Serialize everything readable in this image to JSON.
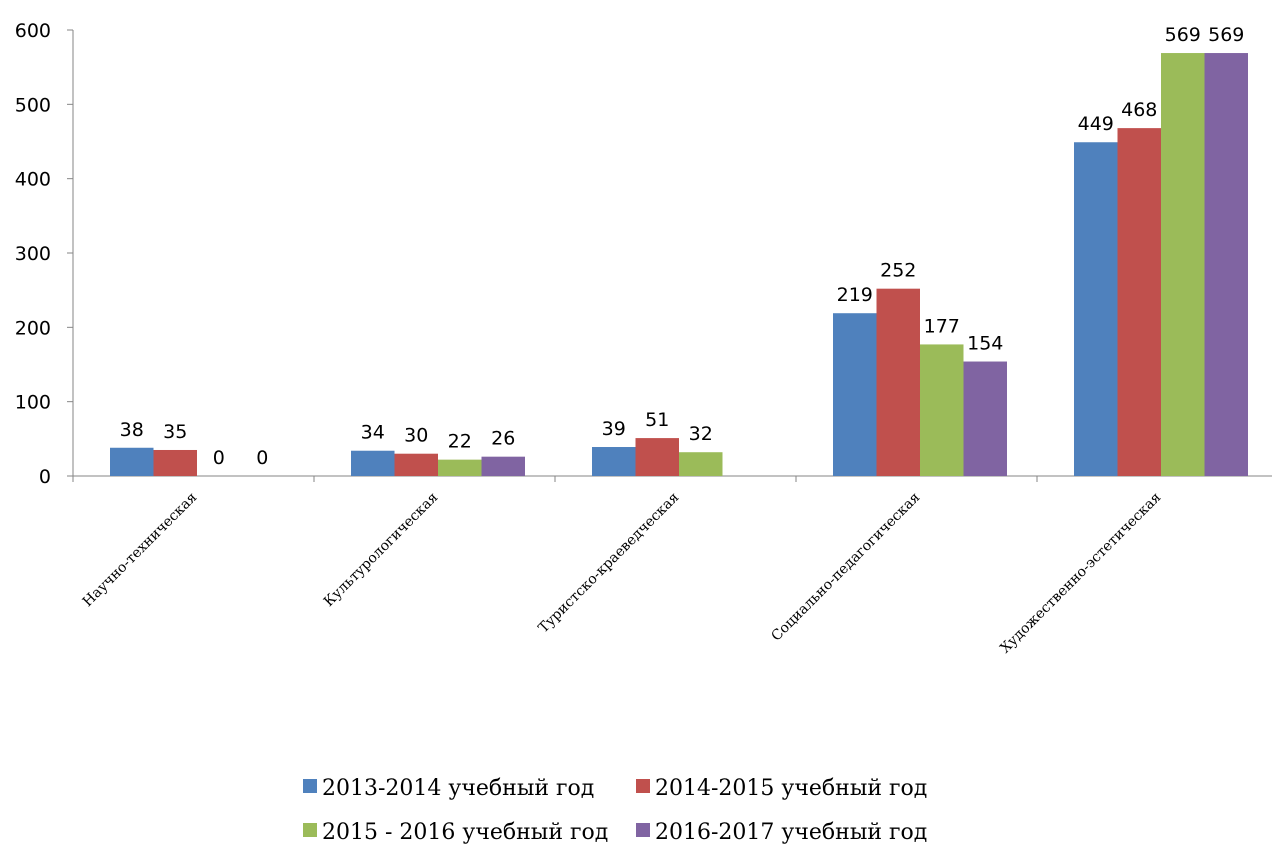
{
  "chart_data": {
    "type": "bar",
    "title": "",
    "xlabel": "",
    "ylabel": "",
    "ylim": [
      0,
      600
    ],
    "yticks": [
      0,
      100,
      200,
      300,
      400,
      500,
      600
    ],
    "grid": false,
    "legend_position": "bottom",
    "categories": [
      "Научно-техническая",
      "Культурологическая",
      "Туристско-краеведческая",
      "Социально-педагогическая",
      "Художественно-эстетическая"
    ],
    "series": [
      {
        "name": "2013-2014 учебный год",
        "color": "#4F81BD",
        "values": [
          38,
          34,
          39,
          219,
          449
        ]
      },
      {
        "name": "2014-2015 учебный год",
        "color": "#C0504D",
        "values": [
          35,
          30,
          51,
          252,
          468
        ]
      },
      {
        "name": "2015 - 2016 учебный год",
        "color": "#9BBB59",
        "values": [
          0,
          22,
          32,
          177,
          569
        ]
      },
      {
        "name": "2016-2017 учебный год",
        "color": "#8064A2",
        "values": [
          0,
          26,
          null,
          154,
          569
        ]
      }
    ]
  }
}
